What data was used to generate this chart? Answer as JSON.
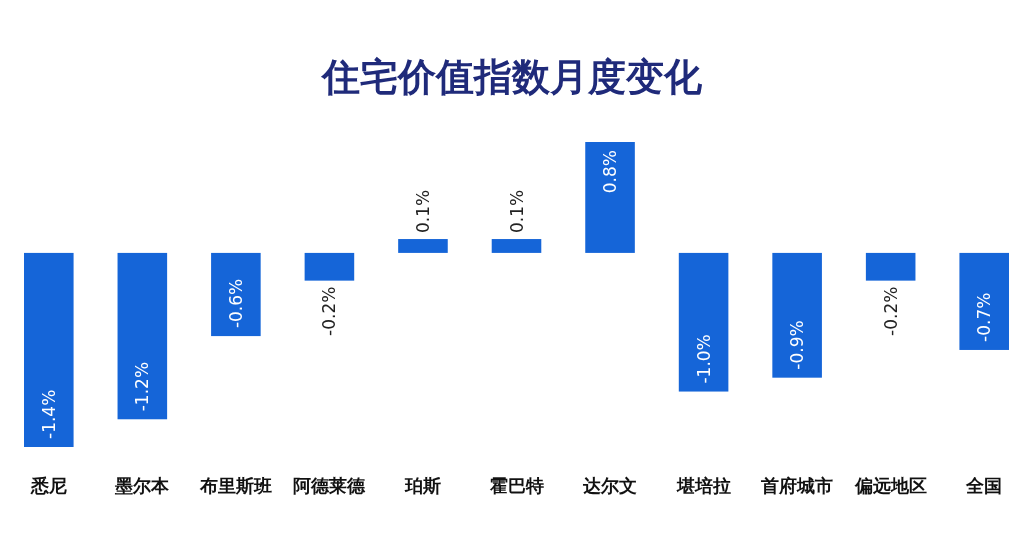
{
  "chart_data": {
    "type": "bar",
    "title": "住宅价值指数月度变化",
    "categories": [
      "悉尼",
      "墨尔本",
      "布里斯班",
      "阿德莱德",
      "珀斯",
      "霍巴特",
      "达尔文",
      "堪培拉",
      "首府城市",
      "偏远地区",
      "全国"
    ],
    "values": [
      -1.4,
      -1.2,
      -0.6,
      -0.2,
      0.1,
      0.1,
      0.8,
      -1.0,
      -0.9,
      -0.2,
      -0.7
    ],
    "value_labels": [
      "-1.4%",
      "-1.2%",
      "-0.6%",
      "-0.2%",
      "0.1%",
      "0.1%",
      "0.8%",
      "-1.0%",
      "-0.9%",
      "-0.2%",
      "-0.7%"
    ],
    "color": "#1565d8"
  }
}
